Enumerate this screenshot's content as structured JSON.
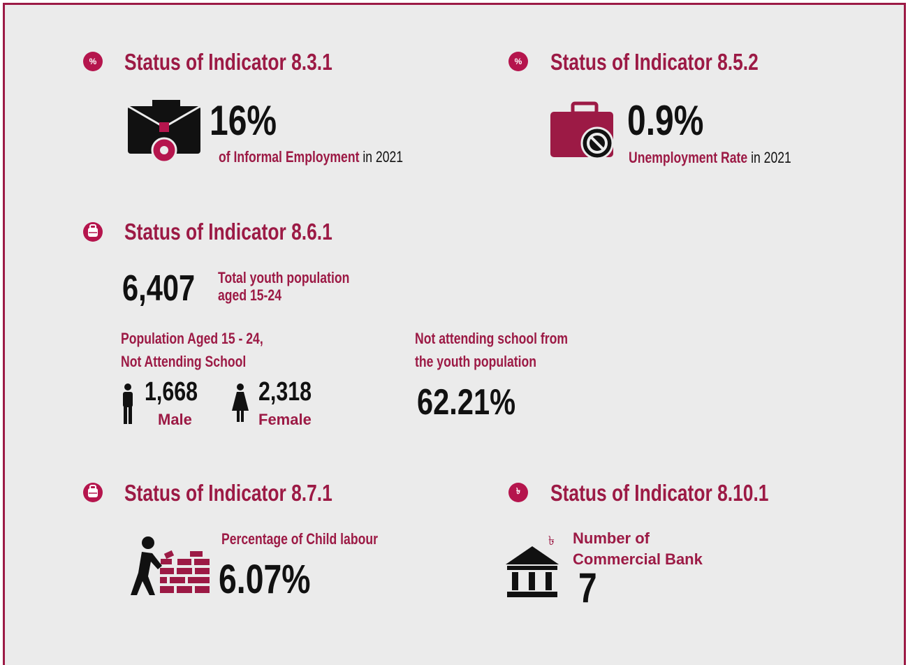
{
  "indicators": [
    {
      "icon": "%",
      "title": "Status of Indicator 8.3.1",
      "value": "16%",
      "label": "of Informal Employment",
      "suffix": "in 2021"
    },
    {
      "icon": "%",
      "title": "Status of Indicator 8.5.2",
      "value": "0.9%",
      "label": "Unemployment Rate",
      "suffix": "in 2021"
    },
    {
      "title": "Status of Indicator 8.6.1",
      "total": "6,407",
      "total_label": [
        "Total youth population",
        "aged 15-24"
      ],
      "group_label": [
        "Population Aged 15 - 24,",
        "Not Attending School"
      ],
      "male": {
        "value": "1,668",
        "label": "Male"
      },
      "female": {
        "value": "2,318",
        "label": "Female"
      },
      "share_label": [
        "Not attending school from",
        "the youth population"
      ],
      "share": "62.21%"
    },
    {
      "title": "Status of Indicator 8.7.1",
      "label": "Percentage of Child labour",
      "value": "6.07%"
    },
    {
      "icon": "৳",
      "title": "Status of Indicator 8.10.1",
      "currency": "৳",
      "label": [
        "Number of",
        "Commercial Bank"
      ],
      "value": "7"
    }
  ]
}
